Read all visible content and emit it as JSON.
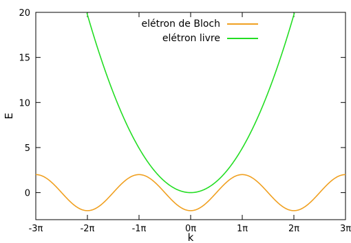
{
  "chart_data": {
    "type": "line",
    "xlabel": "k",
    "ylabel": "E",
    "xlim": [
      -9.42478,
      9.42478
    ],
    "ylim": [
      -3,
      20
    ],
    "x_ticks": [
      {
        "value": -9.42478,
        "label": "-3π"
      },
      {
        "value": -6.28319,
        "label": "-2π"
      },
      {
        "value": -3.14159,
        "label": "-1π"
      },
      {
        "value": 0,
        "label": "0π"
      },
      {
        "value": 3.14159,
        "label": "1π"
      },
      {
        "value": 6.28319,
        "label": "2π"
      },
      {
        "value": 9.42478,
        "label": "3π"
      }
    ],
    "y_ticks": [
      {
        "value": 0,
        "label": "0"
      },
      {
        "value": 5,
        "label": "5"
      },
      {
        "value": 10,
        "label": "10"
      },
      {
        "value": 15,
        "label": "15"
      },
      {
        "value": 20,
        "label": "20"
      }
    ],
    "grid": false,
    "legend_position": "top-center",
    "series": [
      {
        "name": "elétron de Bloch",
        "color": "#f0a020",
        "formula": "E = -2 cos(k)",
        "x": [
          -9.42478,
          -8.63938,
          -7.85398,
          -7.06858,
          -6.28319,
          -5.49779,
          -4.71239,
          -3.92699,
          -3.14159,
          -2.35619,
          -1.5708,
          -0.7854,
          0,
          0.7854,
          1.5708,
          2.35619,
          3.14159,
          3.92699,
          4.71239,
          5.49779,
          6.28319,
          7.06858,
          7.85398,
          8.63938,
          9.42478
        ],
        "y": [
          2,
          1.414,
          0,
          -1.414,
          -2,
          -1.414,
          0,
          1.414,
          2,
          1.414,
          0,
          -1.414,
          -2,
          -1.414,
          0,
          1.414,
          2,
          1.414,
          0,
          -1.414,
          -2,
          -1.414,
          0,
          1.414,
          2
        ]
      },
      {
        "name": "elétron livre",
        "color": "#22dd22",
        "formula": "E = k^2 / 2",
        "x": [
          -6.32456,
          -6,
          -5,
          -4,
          -3,
          -2.5,
          -2,
          -1.5,
          -1,
          -0.5,
          0,
          0.5,
          1,
          1.5,
          2,
          2.5,
          3,
          4,
          5,
          6,
          6.32456
        ],
        "y": [
          20,
          18,
          12.5,
          8,
          4.5,
          3.125,
          2,
          1.125,
          0.5,
          0.125,
          0,
          0.125,
          0.5,
          1.125,
          2,
          3.125,
          4.5,
          8,
          12.5,
          18,
          20
        ]
      }
    ]
  }
}
